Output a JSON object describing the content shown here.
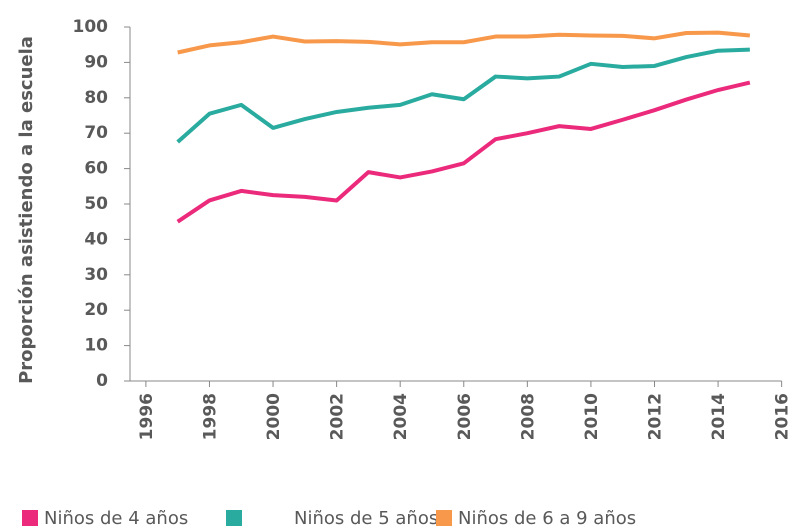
{
  "chart_data": {
    "type": "line",
    "y_label": "Proporción asistiendo a la escuela",
    "x": [
      1997,
      1998,
      1999,
      2000,
      2001,
      2002,
      2003,
      2004,
      2005,
      2006,
      2007,
      2008,
      2009,
      2010,
      2011,
      2012,
      2013,
      2014,
      2015
    ],
    "series": [
      {
        "name": "Niños de 4 años",
        "color": "#ec2a7c",
        "values": [
          45,
          51,
          53.7,
          52.5,
          52,
          51,
          59,
          57.5,
          59.2,
          61.5,
          68.3,
          70,
          72,
          71.2,
          73.8,
          76.5,
          79.5,
          82.2,
          84.3
        ]
      },
      {
        "name": "Niños de 5 años",
        "color": "#2aab9f",
        "values": [
          67.5,
          75.5,
          78,
          71.5,
          74,
          76,
          77.2,
          78,
          81,
          79.6,
          86,
          85.5,
          86,
          89.6,
          88.7,
          89,
          91.5,
          93.3,
          93.6
        ]
      },
      {
        "name": "Niños de 6 a 9 años",
        "color": "#f7984a",
        "values": [
          92.8,
          94.8,
          95.7,
          97.3,
          95.9,
          96,
          95.8,
          95.1,
          95.7,
          95.7,
          97.3,
          97.3,
          97.8,
          97.6,
          97.5,
          96.8,
          98.3,
          98.4,
          97.6
        ]
      }
    ],
    "xlim": [
      1995.5,
      2016.2
    ],
    "xticks": [
      1996,
      1998,
      2000,
      2002,
      2004,
      2006,
      2008,
      2010,
      2012,
      2014,
      2016
    ],
    "ylim": [
      0,
      100
    ],
    "yticks": [
      0,
      10,
      20,
      30,
      40,
      50,
      60,
      70,
      80,
      90,
      100
    ],
    "grid": false,
    "legend": "bottom"
  }
}
